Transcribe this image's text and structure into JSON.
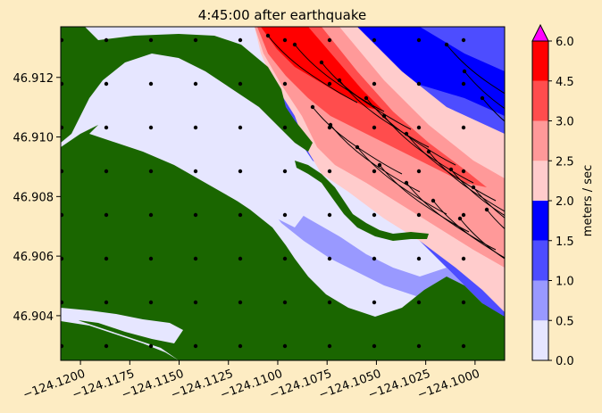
{
  "chart_data": {
    "type": "heatmap",
    "title": "4:45:00 after earthquake",
    "xlim": [
      -124.121,
      -124.0985
    ],
    "ylim": [
      46.9025,
      46.9137
    ],
    "xticks": [
      -124.12,
      -124.1175,
      -124.115,
      -124.1125,
      -124.11,
      -124.1075,
      -124.105,
      -124.1025,
      -124.1
    ],
    "xtick_labels": [
      "−124.1200",
      "−124.1175",
      "−124.1150",
      "−124.1125",
      "−124.1100",
      "−124.1075",
      "−124.1050",
      "−124.1025",
      "−124.1000"
    ],
    "yticks": [
      46.904,
      46.906,
      46.908,
      46.91,
      46.912
    ],
    "ytick_labels": [
      "46.904",
      "46.906",
      "46.908",
      "46.910",
      "46.912"
    ],
    "colorbar": {
      "label": "meters / sec",
      "levels": [
        0.0,
        0.5,
        1.0,
        1.5,
        2.0,
        2.5,
        3.0,
        4.5,
        6.0
      ],
      "level_labels": [
        "0.0",
        "0.5",
        "1.0",
        "1.5",
        "2.0",
        "2.5",
        "3.0",
        "4.5",
        "6.0"
      ],
      "colors": [
        "#e6e6ff",
        "#9999ff",
        "#4d4dff",
        "#0000ff",
        "#ffcccc",
        "#ff9999",
        "#ff4d4d",
        "#ff0000"
      ],
      "over_color": "#ff00ff"
    },
    "land_color": "#1a6600"
  }
}
